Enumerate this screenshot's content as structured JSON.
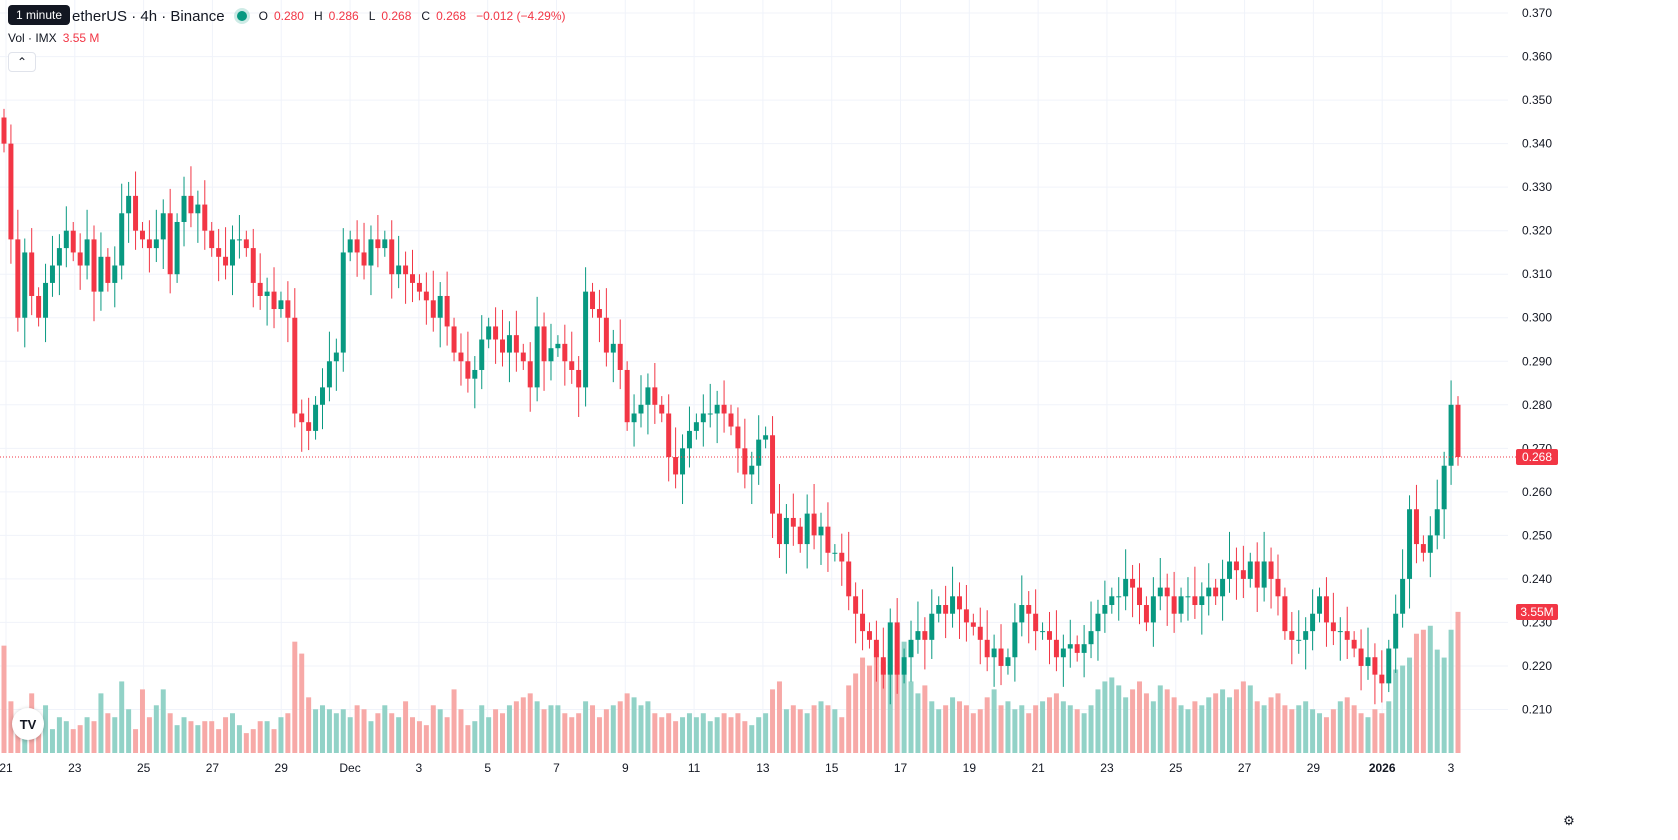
{
  "legend": {
    "tooltip": "1 minute",
    "symbol": "etherUS · 4h · Binance",
    "o_label": "O",
    "o_value": "0.280",
    "h_label": "H",
    "h_value": "0.286",
    "l_label": "L",
    "l_value": "0.268",
    "c_label": "C",
    "c_value": "0.268",
    "change": "−0.012 (−4.29%)"
  },
  "volume_legend": {
    "label": "Vol · IMX",
    "value": "3.55 M"
  },
  "price_tags": {
    "last_price": "0.268",
    "last_volume": "3.55M"
  },
  "colors": {
    "up": "#089981",
    "down": "#f23645",
    "up_volume": "#92d2c7",
    "down_volume": "#f7a9a7",
    "grid": "#f0f3fa",
    "axis_text": "#131722"
  },
  "icons": {
    "logo": "tradingview-logo-icon",
    "settings": "gear-icon",
    "collapse": "chevron-up-icon"
  },
  "chart_data": {
    "type": "candlestick",
    "interval": "4h",
    "ylim": [
      0.2,
      0.373
    ],
    "y_ticks": [
      "0.370",
      "0.360",
      "0.350",
      "0.340",
      "0.330",
      "0.320",
      "0.310",
      "0.300",
      "0.290",
      "0.280",
      "0.270",
      "0.260",
      "0.250",
      "0.240",
      "0.230",
      "0.220",
      "0.210"
    ],
    "x_ticks": [
      {
        "label": "21",
        "bold": false
      },
      {
        "label": "23",
        "bold": false
      },
      {
        "label": "25",
        "bold": false
      },
      {
        "label": "27",
        "bold": false
      },
      {
        "label": "29",
        "bold": false
      },
      {
        "label": "Dec",
        "bold": false
      },
      {
        "label": "3",
        "bold": false
      },
      {
        "label": "5",
        "bold": false
      },
      {
        "label": "7",
        "bold": false
      },
      {
        "label": "9",
        "bold": false
      },
      {
        "label": "11",
        "bold": false
      },
      {
        "label": "13",
        "bold": false
      },
      {
        "label": "15",
        "bold": false
      },
      {
        "label": "17",
        "bold": false
      },
      {
        "label": "19",
        "bold": false
      },
      {
        "label": "21",
        "bold": false
      },
      {
        "label": "23",
        "bold": false
      },
      {
        "label": "25",
        "bold": false
      },
      {
        "label": "27",
        "bold": false
      },
      {
        "label": "29",
        "bold": false
      },
      {
        "label": "2026",
        "bold": true
      },
      {
        "label": "3",
        "bold": false
      }
    ],
    "last_price": 0.268,
    "volume_max_m": 4.2,
    "close": [
      0.34,
      0.318,
      0.3,
      0.315,
      0.305,
      0.3,
      0.308,
      0.312,
      0.316,
      0.32,
      0.315,
      0.312,
      0.318,
      0.306,
      0.314,
      0.308,
      0.312,
      0.324,
      0.328,
      0.32,
      0.318,
      0.316,
      0.318,
      0.324,
      0.31,
      0.322,
      0.328,
      0.324,
      0.326,
      0.32,
      0.316,
      0.314,
      0.312,
      0.318,
      0.318,
      0.316,
      0.308,
      0.305,
      0.306,
      0.302,
      0.304,
      0.3,
      0.278,
      0.276,
      0.274,
      0.28,
      0.284,
      0.29,
      0.292,
      0.315,
      0.318,
      0.315,
      0.312,
      0.318,
      0.316,
      0.318,
      0.31,
      0.312,
      0.31,
      0.308,
      0.306,
      0.304,
      0.3,
      0.305,
      0.298,
      0.292,
      0.29,
      0.286,
      0.288,
      0.295,
      0.298,
      0.295,
      0.292,
      0.296,
      0.292,
      0.29,
      0.284,
      0.298,
      0.29,
      0.293,
      0.294,
      0.29,
      0.288,
      0.284,
      0.306,
      0.302,
      0.3,
      0.292,
      0.294,
      0.288,
      0.276,
      0.278,
      0.28,
      0.284,
      0.28,
      0.278,
      0.268,
      0.264,
      0.27,
      0.274,
      0.276,
      0.278,
      0.278,
      0.28,
      0.278,
      0.275,
      0.27,
      0.264,
      0.266,
      0.272,
      0.273,
      0.255,
      0.248,
      0.254,
      0.252,
      0.248,
      0.255,
      0.25,
      0.252,
      0.246,
      0.246,
      0.244,
      0.236,
      0.232,
      0.228,
      0.226,
      0.222,
      0.218,
      0.23,
      0.218,
      0.222,
      0.226,
      0.228,
      0.226,
      0.232,
      0.234,
      0.232,
      0.236,
      0.233,
      0.23,
      0.229,
      0.226,
      0.222,
      0.224,
      0.22,
      0.222,
      0.23,
      0.234,
      0.232,
      0.228,
      0.228,
      0.226,
      0.222,
      0.224,
      0.225,
      0.223,
      0.225,
      0.228,
      0.232,
      0.234,
      0.236,
      0.236,
      0.24,
      0.238,
      0.234,
      0.23,
      0.236,
      0.238,
      0.236,
      0.232,
      0.236,
      0.236,
      0.234,
      0.236,
      0.238,
      0.236,
      0.24,
      0.244,
      0.242,
      0.24,
      0.244,
      0.238,
      0.244,
      0.24,
      0.236,
      0.228,
      0.226,
      0.226,
      0.228,
      0.232,
      0.236,
      0.23,
      0.228,
      0.228,
      0.226,
      0.224,
      0.22,
      0.222,
      0.218,
      0.216,
      0.224,
      0.232,
      0.24,
      0.256,
      0.248,
      0.246,
      0.25,
      0.256,
      0.266,
      0.28,
      0.268
    ],
    "volume_m": [
      2.7,
      1.3,
      0.9,
      0.6,
      1.5,
      0.9,
      1.2,
      0.6,
      0.9,
      0.8,
      0.6,
      0.7,
      0.9,
      0.8,
      1.5,
      1.0,
      0.9,
      1.8,
      1.1,
      0.6,
      1.6,
      0.9,
      1.2,
      1.6,
      1.0,
      0.7,
      0.9,
      0.8,
      0.7,
      0.8,
      0.8,
      0.6,
      0.9,
      1.0,
      0.7,
      0.5,
      0.6,
      0.8,
      0.8,
      0.6,
      0.9,
      1.0,
      2.8,
      2.5,
      1.4,
      1.1,
      1.2,
      1.1,
      1.0,
      1.1,
      0.9,
      1.2,
      1.1,
      0.8,
      1.0,
      1.2,
      1.0,
      0.9,
      1.3,
      0.9,
      0.8,
      0.7,
      1.2,
      1.1,
      0.9,
      1.6,
      1.1,
      0.7,
      0.8,
      1.2,
      0.9,
      1.1,
      1.0,
      1.2,
      1.3,
      1.4,
      1.5,
      1.3,
      1.1,
      1.2,
      1.2,
      1.0,
      0.9,
      1.0,
      1.3,
      1.2,
      0.9,
      1.1,
      1.2,
      1.3,
      1.5,
      1.4,
      1.2,
      1.3,
      1.0,
      0.9,
      1.0,
      0.8,
      0.9,
      1.0,
      0.9,
      1.0,
      0.8,
      0.9,
      1.0,
      0.9,
      1.0,
      0.8,
      0.7,
      0.9,
      1.0,
      1.6,
      1.8,
      1.1,
      1.2,
      1.1,
      1.0,
      1.2,
      1.3,
      1.2,
      1.1,
      0.9,
      1.7,
      2.0,
      2.4,
      2.2,
      2.5,
      2.3,
      2.6,
      3.2,
      2.8,
      1.8,
      1.5,
      1.7,
      1.3,
      1.1,
      1.2,
      1.4,
      1.3,
      1.2,
      1.0,
      1.1,
      1.4,
      1.6,
      1.2,
      1.3,
      1.1,
      1.2,
      1.0,
      1.2,
      1.3,
      1.4,
      1.5,
      1.3,
      1.2,
      1.1,
      1.0,
      1.2,
      1.6,
      1.8,
      1.9,
      1.7,
      1.4,
      1.6,
      1.8,
      1.5,
      1.3,
      1.7,
      1.6,
      1.4,
      1.2,
      1.1,
      1.3,
      1.2,
      1.4,
      1.5,
      1.6,
      1.4,
      1.6,
      1.8,
      1.7,
      1.3,
      1.2,
      1.4,
      1.5,
      1.2,
      1.1,
      1.2,
      1.3,
      1.1,
      1.0,
      0.9,
      1.1,
      1.3,
      1.4,
      1.2,
      1.0,
      0.9,
      1.1,
      1.0,
      1.3,
      2.1,
      2.2,
      2.4,
      3.0,
      3.1,
      3.2,
      2.6,
      2.4,
      3.1,
      3.55
    ]
  }
}
